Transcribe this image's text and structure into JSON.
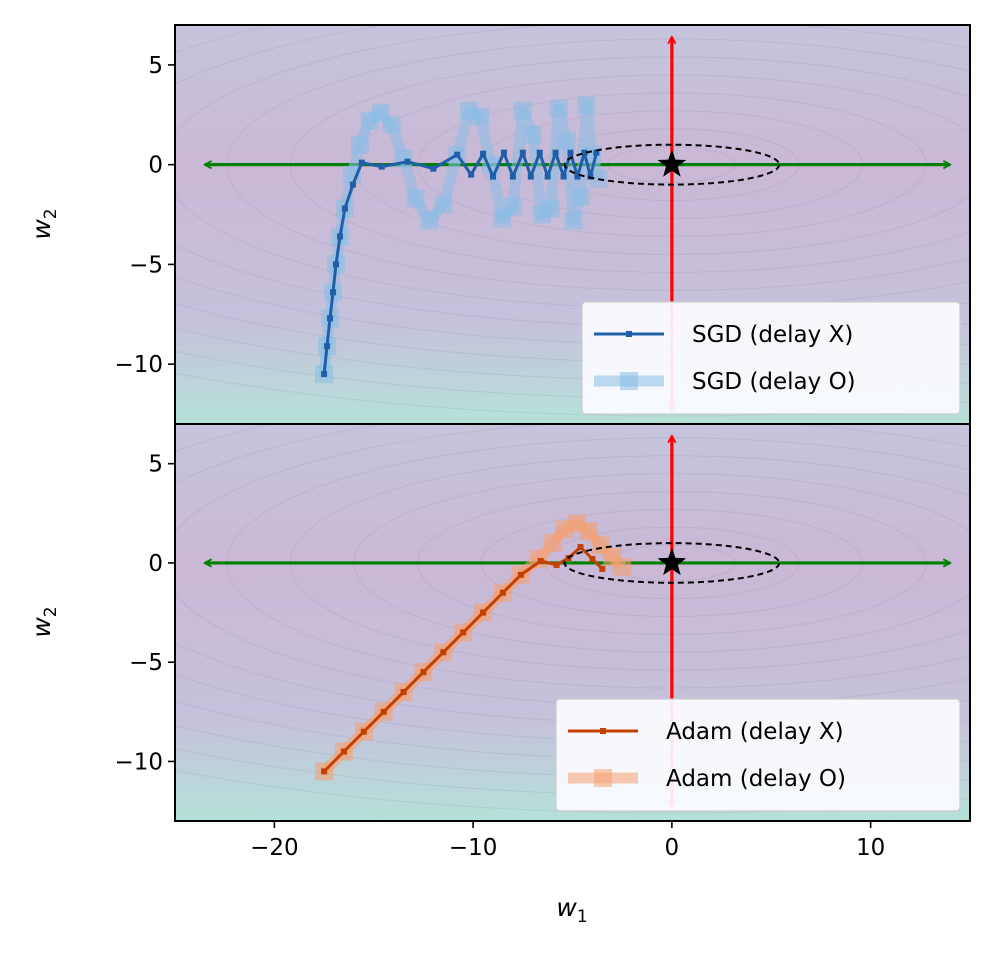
{
  "chart_data": [
    {
      "type": "line",
      "panel": "top",
      "xlim": [
        -25,
        15
      ],
      "ylim": [
        -13,
        7
      ],
      "yticks": [
        5,
        0,
        -5,
        -10
      ],
      "ylabel": "w",
      "ylabel_sub": "2",
      "legend_placement": "lower-right",
      "contour_background": true,
      "optimum": {
        "x": 0,
        "y": 0,
        "marker": "star"
      },
      "ellipse": {
        "cx": 0,
        "cy": 0,
        "rx": 5.4,
        "ry": 1.0,
        "style": "dashed"
      },
      "axis_arrows": {
        "horizontal": {
          "from": -23.5,
          "to": 14,
          "y": 0,
          "color": "#008000"
        },
        "vertical": {
          "from": -12.3,
          "to": 6.4,
          "x": 0,
          "color": "#ff0000"
        }
      },
      "series": [
        {
          "name": "SGD (delay X)",
          "color": "#1f5fa8",
          "style": "thin-line-small-squares",
          "x": [
            -17.5,
            -17.35,
            -17.2,
            -17.05,
            -16.9,
            -16.7,
            -16.45,
            -16.05,
            -15.6,
            -14.6,
            -13.3,
            -12.0,
            -10.8,
            -10.1,
            -9.5,
            -9.0,
            -8.45,
            -8.0,
            -7.5,
            -7.1,
            -6.65,
            -6.25,
            -5.85,
            -5.45,
            -5.1,
            -4.75,
            -4.4,
            -4.1,
            -3.8
          ],
          "y": [
            -10.5,
            -9.1,
            -7.7,
            -6.4,
            -5.0,
            -3.6,
            -2.2,
            -1.0,
            0.1,
            -0.1,
            0.15,
            -0.2,
            0.5,
            -0.5,
            0.55,
            -0.6,
            0.6,
            -0.6,
            0.6,
            -0.6,
            0.6,
            -0.6,
            0.6,
            -0.6,
            0.6,
            -0.6,
            0.6,
            -0.6,
            0.6
          ]
        },
        {
          "name": "SGD (delay O)",
          "color": "#88bde6",
          "style": "thick-line-large-squares",
          "x": [
            -17.5,
            -17.35,
            -17.2,
            -17.05,
            -16.9,
            -16.7,
            -16.45,
            -16.1,
            -15.7,
            -15.2,
            -14.65,
            -14.1,
            -13.5,
            -12.9,
            -12.2,
            -11.5,
            -10.8,
            -10.2,
            -9.65,
            -9.1,
            -8.55,
            -8.0,
            -7.5,
            -7.0,
            -6.55,
            -6.1,
            -5.7,
            -5.3,
            -4.95,
            -4.6,
            -4.3,
            -4.0,
            -3.7
          ],
          "y": [
            -10.5,
            -9.1,
            -7.7,
            -6.4,
            -5.0,
            -3.6,
            -2.2,
            -0.5,
            1.0,
            2.2,
            2.6,
            2.0,
            0.3,
            -1.7,
            -2.8,
            -2.0,
            0.5,
            2.7,
            2.4,
            0.0,
            -2.7,
            -2.1,
            2.7,
            1.5,
            -2.5,
            -2.2,
            2.8,
            1.2,
            -2.8,
            -1.6,
            3.0,
            0.5,
            -0.7
          ]
        }
      ]
    },
    {
      "type": "line",
      "panel": "bottom",
      "xlim": [
        -25,
        15
      ],
      "ylim": [
        -13,
        7
      ],
      "xticks": [
        -20,
        -10,
        0,
        10
      ],
      "yticks": [
        5,
        0,
        -5,
        -10
      ],
      "xlabel": "w",
      "xlabel_sub": "1",
      "ylabel": "w",
      "ylabel_sub": "2",
      "legend_placement": "lower-right",
      "contour_background": true,
      "optimum": {
        "x": 0,
        "y": 0,
        "marker": "star"
      },
      "ellipse": {
        "cx": 0,
        "cy": 0,
        "rx": 5.4,
        "ry": 1.0,
        "style": "dashed"
      },
      "axis_arrows": {
        "horizontal": {
          "from": -23.5,
          "to": 14,
          "y": 0,
          "color": "#008000"
        },
        "vertical": {
          "from": -12.3,
          "to": 6.4,
          "x": 0,
          "color": "#ff0000"
        }
      },
      "series": [
        {
          "name": "Adam (delay X)",
          "color": "#c44000",
          "style": "thin-line-small-squares",
          "x": [
            -17.5,
            -16.5,
            -15.5,
            -14.5,
            -13.5,
            -12.5,
            -11.5,
            -10.5,
            -9.5,
            -8.5,
            -7.6,
            -6.6,
            -5.8,
            -5.2,
            -4.6,
            -4.0,
            -3.5
          ],
          "y": [
            -10.5,
            -9.5,
            -8.5,
            -7.5,
            -6.5,
            -5.5,
            -4.5,
            -3.5,
            -2.5,
            -1.5,
            -0.6,
            0.1,
            -0.1,
            0.25,
            0.8,
            0.2,
            -0.3
          ]
        },
        {
          "name": "Adam (delay O)",
          "color": "#f6a070",
          "style": "thick-line-large-squares",
          "x": [
            -17.5,
            -16.5,
            -15.5,
            -14.5,
            -13.5,
            -12.5,
            -11.5,
            -10.5,
            -9.5,
            -8.5,
            -7.6,
            -6.7,
            -6.0,
            -5.4,
            -4.8,
            -4.2,
            -3.6,
            -3.0,
            -2.5
          ],
          "y": [
            -10.5,
            -9.5,
            -8.5,
            -7.5,
            -6.5,
            -5.5,
            -4.5,
            -3.5,
            -2.5,
            -1.5,
            -0.6,
            0.2,
            1.0,
            1.7,
            2.0,
            1.6,
            0.9,
            0.3,
            -0.2
          ]
        }
      ]
    }
  ]
}
